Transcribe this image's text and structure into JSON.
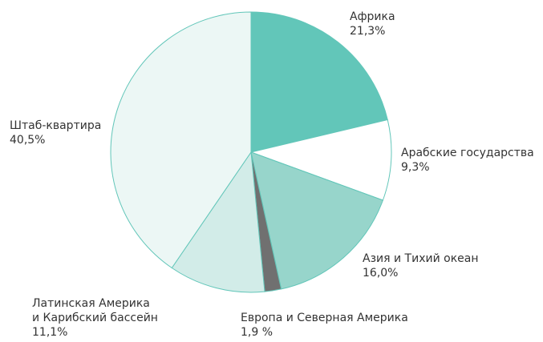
{
  "chart_data": {
    "type": "pie",
    "categories": [
      "Африка",
      "Арабские государства",
      "Азия и Тихий океан",
      "Европа и Северная Америка",
      "Латинская Америка\nи Карибский бассейн",
      "Штаб-квартира"
    ],
    "values": [
      21.3,
      9.3,
      16.0,
      1.9,
      11.1,
      40.5
    ],
    "value_labels": [
      "21,3%",
      "9,3%",
      "16,0%",
      "1,9 %",
      "11,1%",
      "40,5%"
    ],
    "colors": [
      "#62c6b9",
      "#ffffff",
      "#97d5cb",
      "#707070",
      "#d2ece8",
      "#ecf7f5"
    ]
  }
}
